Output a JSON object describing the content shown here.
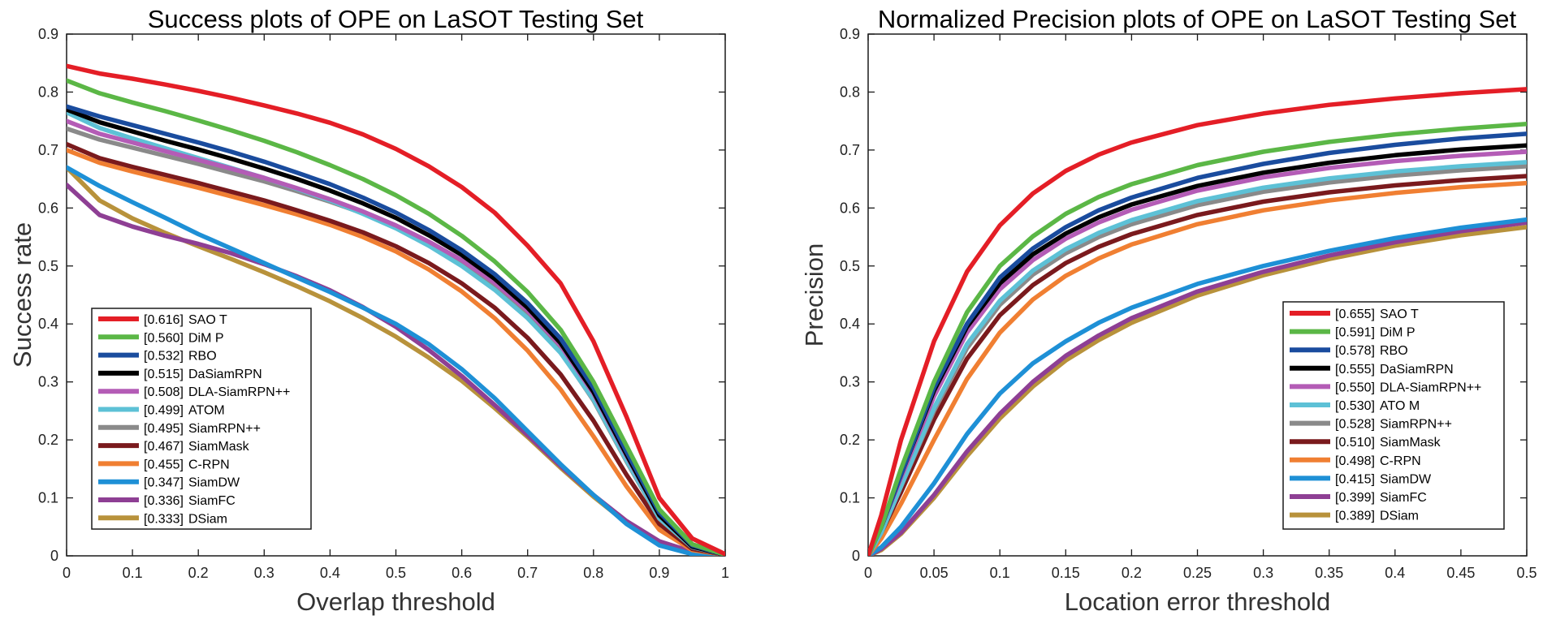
{
  "chart_data": [
    {
      "type": "line",
      "title": "Success plots of OPE on LaSOT Testing Set",
      "xlabel": "Overlap threshold",
      "ylabel": "Success rate",
      "xlim": [
        0,
        1
      ],
      "ylim": [
        0,
        0.9
      ],
      "xticks": [
        "0",
        "0.1",
        "0.2",
        "0.3",
        "0.4",
        "0.5",
        "0.6",
        "0.7",
        "0.8",
        "0.9",
        "1"
      ],
      "yticks": [
        "0",
        "0.1",
        "0.2",
        "0.3",
        "0.4",
        "0.5",
        "0.6",
        "0.7",
        "0.8",
        "0.9"
      ],
      "x": [
        0,
        0.05,
        0.1,
        0.15,
        0.2,
        0.25,
        0.3,
        0.35,
        0.4,
        0.45,
        0.5,
        0.55,
        0.6,
        0.65,
        0.7,
        0.75,
        0.8,
        0.85,
        0.9,
        0.95,
        1.0
      ],
      "legend_position": "bottom-left",
      "series": [
        {
          "name": "SAO T",
          "score": "[0.616]",
          "color": "#e41e26",
          "values": [
            0.845,
            0.832,
            0.823,
            0.813,
            0.802,
            0.79,
            0.777,
            0.763,
            0.747,
            0.727,
            0.702,
            0.672,
            0.636,
            0.592,
            0.535,
            0.47,
            0.37,
            0.24,
            0.1,
            0.03,
            0.003
          ]
        },
        {
          "name": "DiM P",
          "score": "[0.560]",
          "color": "#5bb746",
          "values": [
            0.82,
            0.798,
            0.782,
            0.767,
            0.751,
            0.734,
            0.716,
            0.696,
            0.674,
            0.65,
            0.622,
            0.59,
            0.552,
            0.508,
            0.455,
            0.39,
            0.3,
            0.19,
            0.08,
            0.02,
            0.002
          ]
        },
        {
          "name": "RBO",
          "score": "[0.532]",
          "color": "#1a4c9e",
          "values": [
            0.775,
            0.758,
            0.743,
            0.728,
            0.713,
            0.697,
            0.68,
            0.661,
            0.641,
            0.618,
            0.592,
            0.562,
            0.527,
            0.486,
            0.436,
            0.375,
            0.29,
            0.18,
            0.075,
            0.018,
            0.002
          ]
        },
        {
          "name": "DaSiamRPN",
          "score": "[0.515]",
          "color": "#000000",
          "values": [
            0.77,
            0.748,
            0.732,
            0.716,
            0.701,
            0.685,
            0.668,
            0.65,
            0.63,
            0.608,
            0.583,
            0.553,
            0.519,
            0.478,
            0.428,
            0.367,
            0.283,
            0.175,
            0.07,
            0.016,
            0.002
          ]
        },
        {
          "name": "DLA-SiamRPN++",
          "score": "[0.508]",
          "color": "#b45cb6",
          "values": [
            0.75,
            0.728,
            0.713,
            0.698,
            0.683,
            0.668,
            0.652,
            0.634,
            0.615,
            0.594,
            0.57,
            0.542,
            0.51,
            0.471,
            0.423,
            0.363,
            0.28,
            0.173,
            0.07,
            0.016,
            0.002
          ]
        },
        {
          "name": "ATOM",
          "score": "[0.499]",
          "color": "#5dc1d6",
          "values": [
            0.765,
            0.738,
            0.72,
            0.703,
            0.686,
            0.669,
            0.652,
            0.633,
            0.613,
            0.59,
            0.565,
            0.535,
            0.5,
            0.459,
            0.41,
            0.35,
            0.27,
            0.165,
            0.065,
            0.015,
            0.002
          ]
        },
        {
          "name": "SiamRPN++",
          "score": "[0.495]",
          "color": "#8a8a8a",
          "values": [
            0.737,
            0.718,
            0.704,
            0.69,
            0.676,
            0.661,
            0.646,
            0.629,
            0.611,
            0.591,
            0.567,
            0.54,
            0.507,
            0.466,
            0.415,
            0.352,
            0.268,
            0.163,
            0.064,
            0.015,
            0.002
          ]
        },
        {
          "name": "SiamMask",
          "score": "[0.467]",
          "color": "#7a1a1d",
          "values": [
            0.71,
            0.686,
            0.671,
            0.657,
            0.643,
            0.628,
            0.613,
            0.596,
            0.578,
            0.558,
            0.534,
            0.505,
            0.47,
            0.428,
            0.376,
            0.313,
            0.233,
            0.14,
            0.055,
            0.012,
            0.002
          ]
        },
        {
          "name": "C-RPN",
          "score": "[0.455]",
          "color": "#f07f32",
          "values": [
            0.7,
            0.678,
            0.663,
            0.649,
            0.635,
            0.62,
            0.605,
            0.589,
            0.571,
            0.55,
            0.525,
            0.494,
            0.456,
            0.41,
            0.354,
            0.287,
            0.206,
            0.12,
            0.045,
            0.01,
            0.002
          ]
        },
        {
          "name": "SiamDW",
          "score": "[0.347]",
          "color": "#1e90d6",
          "values": [
            0.67,
            0.638,
            0.61,
            0.583,
            0.555,
            0.53,
            0.505,
            0.48,
            0.455,
            0.428,
            0.4,
            0.365,
            0.322,
            0.272,
            0.215,
            0.158,
            0.105,
            0.055,
            0.018,
            0.003,
            0.0
          ]
        },
        {
          "name": "SiamFC",
          "score": "[0.336]",
          "color": "#8e3f94",
          "values": [
            0.64,
            0.588,
            0.568,
            0.552,
            0.538,
            0.522,
            0.503,
            0.482,
            0.458,
            0.429,
            0.395,
            0.355,
            0.31,
            0.26,
            0.208,
            0.155,
            0.105,
            0.06,
            0.025,
            0.007,
            0.001
          ]
        },
        {
          "name": "DSiam",
          "score": "[0.333]",
          "color": "#b8923b",
          "values": [
            0.67,
            0.613,
            0.582,
            0.557,
            0.534,
            0.512,
            0.489,
            0.465,
            0.439,
            0.41,
            0.378,
            0.342,
            0.302,
            0.255,
            0.205,
            0.152,
            0.102,
            0.057,
            0.024,
            0.006,
            0.001
          ]
        }
      ]
    },
    {
      "type": "line",
      "title": "Normalized Precision plots of OPE on LaSOT Testing Set",
      "xlabel": "Location error threshold",
      "ylabel": "Precision",
      "xlim": [
        0,
        0.5
      ],
      "ylim": [
        0,
        0.9
      ],
      "xticks": [
        "0",
        "0.05",
        "0.1",
        "0.15",
        "0.2",
        "0.25",
        "0.3",
        "0.35",
        "0.4",
        "0.45",
        "0.5"
      ],
      "yticks": [
        "0",
        "0.1",
        "0.2",
        "0.3",
        "0.4",
        "0.5",
        "0.6",
        "0.7",
        "0.8",
        "0.9"
      ],
      "x": [
        0,
        0.01,
        0.025,
        0.05,
        0.075,
        0.1,
        0.125,
        0.15,
        0.175,
        0.2,
        0.25,
        0.3,
        0.35,
        0.4,
        0.45,
        0.5
      ],
      "legend_position": "bottom-right",
      "series": [
        {
          "name": "SAO T",
          "score": "[0.655]",
          "color": "#e41e26",
          "values": [
            0.0,
            0.07,
            0.2,
            0.37,
            0.49,
            0.57,
            0.625,
            0.664,
            0.692,
            0.713,
            0.743,
            0.763,
            0.778,
            0.789,
            0.798,
            0.805
          ]
        },
        {
          "name": "DiM P",
          "score": "[0.591]",
          "color": "#5bb746",
          "values": [
            0.0,
            0.05,
            0.15,
            0.3,
            0.42,
            0.5,
            0.551,
            0.59,
            0.619,
            0.641,
            0.674,
            0.697,
            0.714,
            0.727,
            0.737,
            0.745
          ]
        },
        {
          "name": "RBO",
          "score": "[0.578]",
          "color": "#1a4c9e",
          "values": [
            0.0,
            0.05,
            0.14,
            0.29,
            0.4,
            0.48,
            0.53,
            0.567,
            0.596,
            0.618,
            0.652,
            0.676,
            0.695,
            0.709,
            0.72,
            0.728
          ]
        },
        {
          "name": "DaSiamRPN",
          "score": "[0.555]",
          "color": "#000000",
          "values": [
            0.0,
            0.05,
            0.14,
            0.285,
            0.395,
            0.47,
            0.52,
            0.556,
            0.584,
            0.606,
            0.638,
            0.661,
            0.678,
            0.691,
            0.701,
            0.708
          ]
        },
        {
          "name": "DLA-SiamRPN++",
          "score": "[0.550]",
          "color": "#b45cb6",
          "values": [
            0.0,
            0.05,
            0.135,
            0.275,
            0.385,
            0.46,
            0.51,
            0.547,
            0.575,
            0.597,
            0.63,
            0.653,
            0.669,
            0.681,
            0.69,
            0.697
          ]
        },
        {
          "name": "ATO M",
          "score": "[0.530]",
          "color": "#5dc1d6",
          "values": [
            0.0,
            0.04,
            0.12,
            0.255,
            0.365,
            0.44,
            0.492,
            0.529,
            0.557,
            0.579,
            0.612,
            0.635,
            0.651,
            0.663,
            0.672,
            0.679
          ]
        },
        {
          "name": "SiamRPN++",
          "score": "[0.528]",
          "color": "#8a8a8a",
          "values": [
            0.0,
            0.04,
            0.12,
            0.25,
            0.358,
            0.433,
            0.485,
            0.522,
            0.55,
            0.572,
            0.605,
            0.628,
            0.644,
            0.656,
            0.665,
            0.672
          ]
        },
        {
          "name": "SiamMask",
          "score": "[0.510]",
          "color": "#7a1a1d",
          "values": [
            0.0,
            0.04,
            0.11,
            0.235,
            0.34,
            0.415,
            0.467,
            0.505,
            0.533,
            0.555,
            0.588,
            0.611,
            0.627,
            0.639,
            0.648,
            0.655
          ]
        },
        {
          "name": "C-RPN",
          "score": "[0.498]",
          "color": "#f07f32",
          "values": [
            0.0,
            0.03,
            0.09,
            0.2,
            0.305,
            0.385,
            0.442,
            0.483,
            0.513,
            0.537,
            0.572,
            0.596,
            0.613,
            0.626,
            0.636,
            0.643
          ]
        },
        {
          "name": "SiamDW",
          "score": "[0.415]",
          "color": "#1e90d6",
          "values": [
            0.0,
            0.015,
            0.05,
            0.125,
            0.21,
            0.28,
            0.332,
            0.37,
            0.402,
            0.428,
            0.469,
            0.5,
            0.526,
            0.548,
            0.566,
            0.58
          ]
        },
        {
          "name": "SiamFC",
          "score": "[0.399]",
          "color": "#8e3f94",
          "values": [
            0.0,
            0.012,
            0.04,
            0.105,
            0.18,
            0.245,
            0.3,
            0.345,
            0.38,
            0.41,
            0.456,
            0.49,
            0.518,
            0.541,
            0.56,
            0.575
          ]
        },
        {
          "name": "DSiam",
          "score": "[0.389]",
          "color": "#b8923b",
          "values": [
            0.0,
            0.01,
            0.038,
            0.1,
            0.172,
            0.237,
            0.292,
            0.337,
            0.372,
            0.402,
            0.449,
            0.484,
            0.512,
            0.535,
            0.553,
            0.567
          ]
        }
      ]
    }
  ]
}
